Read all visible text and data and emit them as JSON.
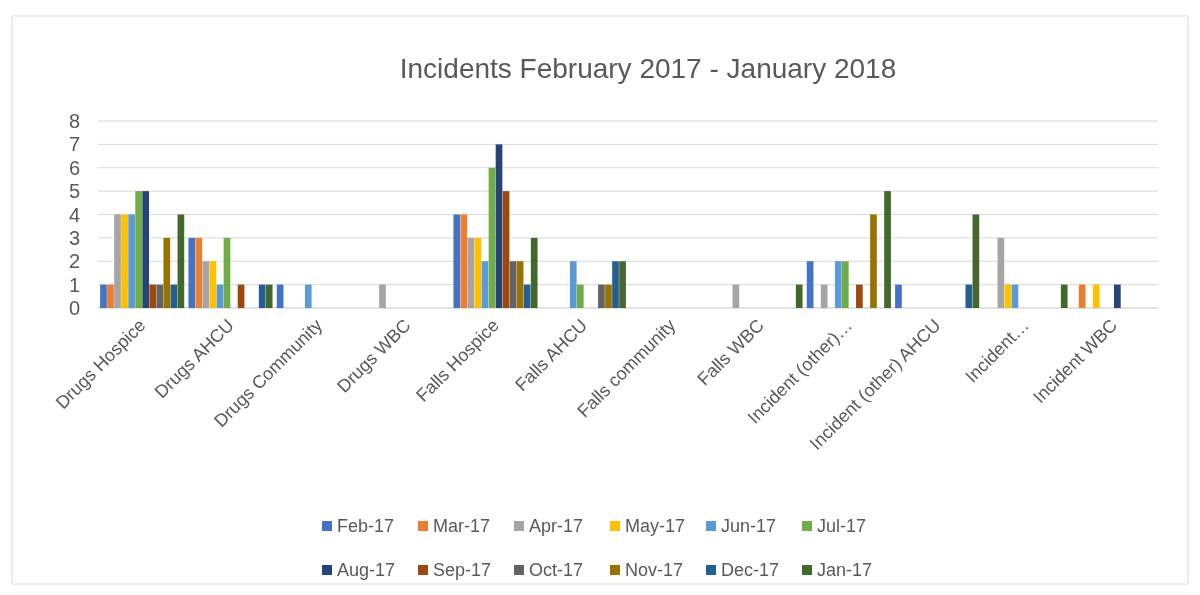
{
  "chart_data": {
    "type": "bar",
    "title": "Incidents February 2017 - January 2018",
    "categories": [
      "Drugs Hospice",
      "Drugs AHCU",
      "Drugs Community",
      "Drugs WBC",
      "Falls Hospice",
      "Falls AHCU",
      "Falls community",
      "Falls WBC",
      "Incident (other)…",
      "Incident (other) AHCU",
      "Incident…",
      "Incident WBC"
    ],
    "series": [
      {
        "name": "Feb-17",
        "color": "#4472c4",
        "values": [
          1,
          3,
          1,
          0,
          4,
          0,
          0,
          0,
          2,
          1,
          0,
          0
        ]
      },
      {
        "name": "Mar-17",
        "color": "#ed7d31",
        "values": [
          1,
          3,
          0,
          0,
          4,
          0,
          0,
          0,
          0,
          0,
          0,
          1
        ]
      },
      {
        "name": "Apr-17",
        "color": "#a5a5a5",
        "values": [
          4,
          2,
          0,
          1,
          3,
          0,
          0,
          1,
          1,
          0,
          3,
          0
        ]
      },
      {
        "name": "May-17",
        "color": "#ffc000",
        "values": [
          4,
          2,
          0,
          0,
          3,
          0,
          0,
          0,
          0,
          0,
          1,
          1
        ]
      },
      {
        "name": "Jun-17",
        "color": "#5b9bd5",
        "values": [
          4,
          1,
          1,
          0,
          2,
          2,
          0,
          0,
          2,
          0,
          1,
          0
        ]
      },
      {
        "name": "Jul-17",
        "color": "#70ad47",
        "values": [
          5,
          3,
          0,
          0,
          6,
          1,
          0,
          0,
          2,
          0,
          0,
          0
        ]
      },
      {
        "name": "Aug-17",
        "color": "#264478",
        "values": [
          5,
          0,
          0,
          0,
          7,
          0,
          0,
          0,
          0,
          0,
          0,
          1
        ]
      },
      {
        "name": "Sep-17",
        "color": "#9e480e",
        "values": [
          1,
          1,
          0,
          0,
          5,
          0,
          0,
          0,
          1,
          0,
          0,
          0
        ]
      },
      {
        "name": "Oct-17",
        "color": "#636363",
        "values": [
          1,
          0,
          0,
          0,
          2,
          1,
          0,
          0,
          0,
          0,
          0,
          0
        ]
      },
      {
        "name": "Nov-17",
        "color": "#997300",
        "values": [
          3,
          0,
          0,
          0,
          2,
          1,
          0,
          0,
          4,
          0,
          0,
          0
        ]
      },
      {
        "name": "Dec-17",
        "color": "#255e91",
        "values": [
          1,
          1,
          0,
          0,
          1,
          2,
          0,
          0,
          0,
          1,
          0,
          0
        ]
      },
      {
        "name": "Jan-17",
        "color": "#43682b",
        "values": [
          4,
          1,
          0,
          0,
          3,
          2,
          0,
          1,
          5,
          4,
          1,
          0
        ]
      }
    ],
    "ylim": [
      0,
      8
    ],
    "yticks": [
      0,
      1,
      2,
      3,
      4,
      5,
      6,
      7,
      8
    ],
    "grid": "y",
    "legend": "bottom"
  }
}
